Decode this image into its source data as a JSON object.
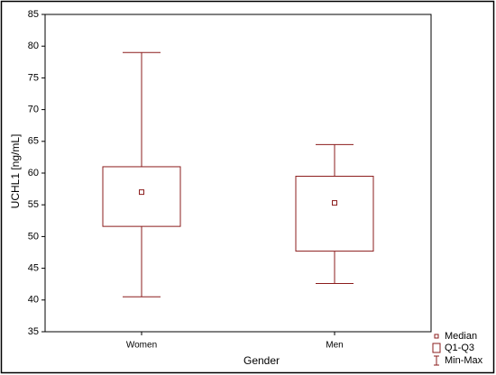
{
  "chart_data": {
    "type": "box",
    "x_label": "Gender",
    "y_label": "UCHL1 [ng/mL]",
    "categories": [
      "Women",
      "Men"
    ],
    "boxes": [
      {
        "min": 40.5,
        "q1": 51.6,
        "median": 57,
        "q3": 61,
        "max": 79
      },
      {
        "min": 42.6,
        "q1": 47.7,
        "median": 55.3,
        "q3": 59.5,
        "max": 64.5
      }
    ],
    "color": "#8b1c1c",
    "ylim": [
      35,
      85
    ],
    "yticks": [
      35,
      40,
      45,
      50,
      55,
      60,
      65,
      70,
      75,
      80,
      85
    ],
    "grid": false,
    "legend": {
      "position": "bottom-right",
      "labels": [
        "Median",
        "Q1-Q3",
        "Min-Max"
      ]
    }
  }
}
